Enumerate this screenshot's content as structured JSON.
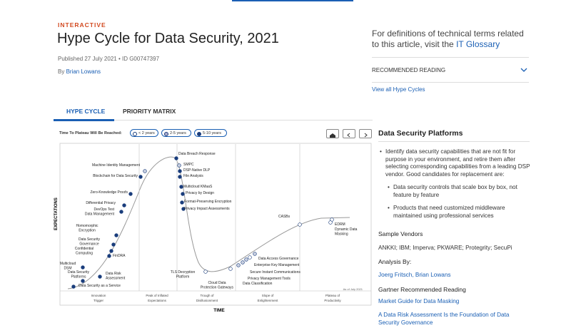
{
  "header": {
    "kicker": "INTERACTIVE",
    "title": "Hype Cycle for Data Security, 2021",
    "meta": "Published 27 July 2021 • ID G00747397",
    "byline_prefix": "By",
    "author": "Brian Lowans"
  },
  "sidebar": {
    "glossary_text": "For definitions of technical terms related to this article, visit the",
    "glossary_link": "IT Glossary",
    "recommended": "RECOMMENDED READING",
    "view_all": "View all Hype Cycles"
  },
  "tabs": [
    "HYPE CYCLE",
    "PRIORITY MATRIX"
  ],
  "legend": {
    "label": "Time To Plateau Will Be Reached:",
    "options": [
      "< 2 years",
      "2-5 years",
      "5-10 years"
    ]
  },
  "chart": {
    "y_axis": "EXPECTATIONS",
    "x_axis": "TIME",
    "date": "As of July 2021",
    "phases": [
      [
        "Innovation",
        "Trigger"
      ],
      [
        "Peak of Inflated",
        "Expectations"
      ],
      [
        "Trough of",
        "Disillusionment"
      ],
      [
        "Slope of",
        "Enlightenment"
      ],
      [
        "Plateau of",
        "Productivity"
      ]
    ],
    "points": [
      [
        "Machine Identity Management"
      ],
      [
        "Blockchain for Data Security"
      ],
      [
        "Zero-Knowledge Proofs"
      ],
      [
        "Differential Privacy"
      ],
      [
        "DevOps Test",
        "Data Management"
      ],
      [
        "Homomorphic",
        "Encryption"
      ],
      [
        "Data Security",
        "Governance"
      ],
      [
        "Confidential",
        "Computing"
      ],
      [
        "FinDRA"
      ],
      [
        "Multicloud",
        "DSM"
      ],
      [
        "Data Security",
        "Platforms"
      ],
      [
        "Data Risk",
        "Assessment"
      ],
      [
        "Data Security as a Service"
      ],
      [
        "Data Breach Response"
      ],
      [
        "SMPC"
      ],
      [
        "DSP-Native DLP"
      ],
      [
        "File Analysis"
      ],
      [
        "Multicloud KMaaS"
      ],
      [
        "Privacy by Design"
      ],
      [
        "Format-Preserving Encryption"
      ],
      [
        "Privacy Impact Assessments"
      ],
      [
        "TLS Decryption",
        "Platform"
      ],
      [
        "Cloud Data",
        "Protection Gateways"
      ],
      [
        "Data Classification"
      ],
      [
        "Privacy Management Tools"
      ],
      [
        "Secure Instant Communications"
      ],
      [
        "Enterprise Key Management"
      ],
      [
        "Data Access Governance"
      ],
      [
        "CASBs"
      ],
      [
        "EDRM"
      ],
      [
        "Dynamic Data",
        "Masking"
      ]
    ]
  },
  "panel": {
    "title": "Data Security Platforms",
    "bullet": "Identify data security capabilities that are not fit for purpose in your environment, and retire them after selecting corresponding capabilities from a leading DSP vendor. Good candidates for replacement are:",
    "sub_bullets": [
      "Data security controls that scale box by box, not feature by feature",
      "Products that need customized middleware maintained using professional services"
    ],
    "vendors_heading": "Sample Vendors",
    "vendors": "ANKKI; IBM; Imperva; PKWARE; Protegrity; SecuPi",
    "analysis_heading": "Analysis By:",
    "analysts": "Joerg Fritsch, Brian Lowans",
    "reading_heading": "Gartner Recommended Reading",
    "reading_links": [
      "Market Guide for Data Masking",
      "A Data Risk Assessment Is the Foundation of Data Security Governance"
    ]
  }
}
